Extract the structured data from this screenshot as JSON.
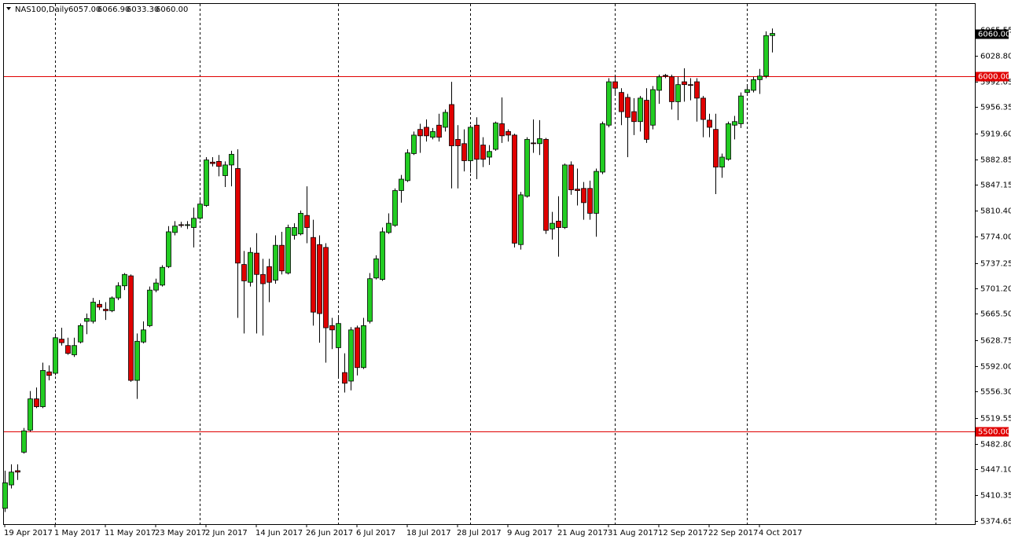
{
  "chart_data": {
    "type": "candlestick",
    "title": "NAS100,Daily",
    "header_ohlc": [
      "6057.00",
      "6066.90",
      "6033.30",
      "6060.00"
    ],
    "categories": [
      "19 Apr 2017",
      null,
      null,
      null,
      null,
      null,
      null,
      null,
      "1 May 2017",
      null,
      null,
      null,
      null,
      null,
      null,
      null,
      "11 May 2017",
      null,
      null,
      null,
      null,
      null,
      null,
      null,
      "23 May 2017",
      null,
      null,
      null,
      null,
      null,
      null,
      null,
      "2 Jun 2017",
      null,
      null,
      null,
      null,
      null,
      null,
      null,
      "14 Jun 2017",
      null,
      null,
      null,
      null,
      null,
      null,
      null,
      "26 Jun 2017",
      null,
      null,
      null,
      null,
      null,
      null,
      null,
      "6 Jul 2017",
      null,
      null,
      null,
      null,
      null,
      null,
      null,
      "18 Jul 2017",
      null,
      null,
      null,
      null,
      null,
      null,
      null,
      "28 Jul 2017",
      null,
      null,
      null,
      null,
      null,
      null,
      null,
      "9 Aug 2017",
      null,
      null,
      null,
      null,
      null,
      null,
      null,
      "21 Aug 2017",
      null,
      null,
      null,
      null,
      null,
      null,
      null,
      "31 Aug 2017",
      null,
      null,
      null,
      null,
      null,
      null,
      null,
      "12 Sep 2017",
      null,
      null,
      null,
      null,
      null,
      null,
      null,
      "22 Sep 2017",
      null,
      null,
      null,
      null,
      null,
      null,
      null,
      "4 Oct 2017",
      null,
      null
    ],
    "open": [
      5392,
      5425,
      5445,
      5471,
      5502,
      5546,
      5535,
      5584,
      5582,
      5630,
      5621,
      5608,
      5626,
      5655,
      5655,
      5679,
      5672,
      5670,
      5688,
      5705,
      5719,
      5572,
      5626,
      5649,
      5699,
      5706,
      5732,
      5780,
      5791,
      5790,
      5787,
      5800,
      5818,
      5879,
      5880,
      5860,
      5875,
      5870,
      5735,
      5710,
      5751,
      5721,
      5732,
      5713,
      5762,
      5723,
      5776,
      5778,
      5804,
      5773,
      5763,
      5759,
      5649,
      5618,
      5583,
      5571,
      5646,
      5590,
      5655,
      5716,
      5714,
      5780,
      5790,
      5839,
      5853,
      5891,
      5925,
      5928,
      5914,
      5931,
      5928,
      5960,
      5911,
      5905,
      5881,
      5931,
      5903,
      5886,
      5897,
      5933,
      5922,
      5917,
      5763,
      5831,
      5906,
      5905,
      5911,
      5785,
      5796,
      5787,
      5875,
      5841,
      5842,
      5842,
      5807,
      5865,
      5931,
      5992,
      5977,
      5970,
      5950,
      5936,
      5966,
      5931,
      5980,
      6001,
      5999,
      5964,
      5992,
      5988,
      5992,
      5969,
      5938,
      5925,
      5872,
      5883,
      5931,
      5933,
      5977,
      5980,
      5995,
      6000,
      6057
    ],
    "high": [
      5445,
      5454,
      5454,
      5505,
      5557,
      5562,
      5597,
      5593,
      5638,
      5646,
      5632,
      5632,
      5652,
      5666,
      5688,
      5685,
      5682,
      5690,
      5710,
      5723,
      5721,
      5638,
      5655,
      5704,
      5715,
      5734,
      5789,
      5796,
      5795,
      5796,
      5815,
      5826,
      5886,
      5886,
      5889,
      5880,
      5895,
      5897,
      5754,
      5759,
      5779,
      5743,
      5743,
      5776,
      5781,
      5791,
      5793,
      5811,
      5845,
      5798,
      5776,
      5765,
      5660,
      5663,
      5610,
      5647,
      5649,
      5660,
      5723,
      5748,
      5787,
      5807,
      5842,
      5861,
      5897,
      5922,
      5933,
      5939,
      5927,
      5947,
      5953,
      5992,
      5931,
      5925,
      5931,
      5942,
      5914,
      5903,
      5936,
      5970,
      5925,
      5919,
      5837,
      5914,
      5939,
      5938,
      5913,
      5809,
      5831,
      5877,
      5880,
      5870,
      5851,
      5853,
      5870,
      5936,
      5997,
      6001,
      5983,
      5975,
      5969,
      5972,
      5983,
      5986,
      6002,
      6003,
      6002,
      5999,
      6011,
      5997,
      5997,
      5972,
      5947,
      5947,
      5891,
      5936,
      5944,
      5977,
      5986,
      5999,
      6010,
      6063,
      6066.9
    ],
    "low": [
      5387,
      5420,
      5432,
      5469,
      5500,
      5533,
      5533,
      5572,
      5579,
      5621,
      5608,
      5605,
      5624,
      5637,
      5652,
      5671,
      5657,
      5668,
      5685,
      5699,
      5570,
      5546,
      5624,
      5647,
      5696,
      5704,
      5730,
      5776,
      5787,
      5785,
      5759,
      5798,
      5816,
      5873,
      5859,
      5844,
      5845,
      5660,
      5638,
      5704,
      5638,
      5635,
      5682,
      5708,
      5721,
      5721,
      5770,
      5776,
      5765,
      5649,
      5625,
      5597,
      5616,
      5577,
      5555,
      5558,
      5579,
      5588,
      5652,
      5714,
      5712,
      5778,
      5788,
      5822,
      5851,
      5889,
      5892,
      5908,
      5911,
      5908,
      5922,
      5842,
      5842,
      5866,
      5864,
      5855,
      5872,
      5875,
      5895,
      5906,
      5908,
      5759,
      5756,
      5829,
      5892,
      5889,
      5778,
      5770,
      5746,
      5785,
      5833,
      5818,
      5798,
      5798,
      5774,
      5862,
      5928,
      5975,
      5931,
      5886,
      5917,
      5922,
      5906,
      5925,
      5961,
      5997,
      5953,
      5938,
      5964,
      5966,
      5936,
      5914,
      5914,
      5834,
      5857,
      5881,
      5911,
      5927,
      5975,
      5977,
      5975,
      5997,
      6033.3
    ],
    "close": [
      5428,
      5443,
      5443,
      5501,
      5546,
      5535,
      5586,
      5579,
      5632,
      5625,
      5610,
      5621,
      5649,
      5659,
      5682,
      5675,
      5670,
      5688,
      5705,
      5721,
      5572,
      5627,
      5643,
      5699,
      5709,
      5731,
      5781,
      5789,
      5790,
      5791,
      5800,
      5820,
      5882,
      5877,
      5873,
      5875,
      5890,
      5737,
      5712,
      5752,
      5721,
      5708,
      5710,
      5762,
      5726,
      5787,
      5787,
      5807,
      5787,
      5668,
      5666,
      5646,
      5643,
      5652,
      5568,
      5643,
      5590,
      5649,
      5715,
      5743,
      5781,
      5793,
      5839,
      5855,
      5892,
      5917,
      5916,
      5916,
      5922,
      5914,
      5949,
      5902,
      5902,
      5881,
      5928,
      5883,
      5883,
      5894,
      5934,
      5916,
      5917,
      5765,
      5833,
      5911,
      5905,
      5912,
      5783,
      5793,
      5787,
      5875,
      5840,
      5839,
      5822,
      5807,
      5866,
      5933,
      5992,
      5983,
      5950,
      5942,
      5936,
      5969,
      5911,
      5981,
      5999,
      6000,
      5964,
      5988,
      5988,
      5987,
      5969,
      5939,
      5928,
      5872,
      5886,
      5933,
      5936,
      5972,
      5981,
      5995,
      6000,
      6057,
      6060
    ],
    "up_color": "#22cc22",
    "down_color": "#e00000",
    "ylim": [
      5369.8,
      6101.5
    ],
    "yticks": [
      {
        "value": 6065.55,
        "label": "6065.55"
      },
      {
        "value": 6028.8,
        "label": "6028.80"
      },
      {
        "value": 5992.05,
        "label": "5992.05"
      },
      {
        "value": 5956.35,
        "label": "5956.35"
      },
      {
        "value": 5919.6,
        "label": "5919.60"
      },
      {
        "value": 5882.85,
        "label": "5882.85"
      },
      {
        "value": 5847.15,
        "label": "5847.15"
      },
      {
        "value": 5810.4,
        "label": "5810.40"
      },
      {
        "value": 5774,
        "label": "5774.00"
      },
      {
        "value": 5737.25,
        "label": "5737.25"
      },
      {
        "value": 5701.2,
        "label": "5701.20"
      },
      {
        "value": 5665.5,
        "label": "5665.50"
      },
      {
        "value": 5628.75,
        "label": "5628.75"
      },
      {
        "value": 5592,
        "label": "5592.00"
      },
      {
        "value": 5556.3,
        "label": "5556.30"
      },
      {
        "value": 5519.55,
        "label": "5519.55"
      },
      {
        "value": 5482.8,
        "label": "5482.80"
      },
      {
        "value": 5447.1,
        "label": "5447.10"
      },
      {
        "value": 5410.35,
        "label": "5410.35"
      },
      {
        "value": 5374.65,
        "label": "5374.65"
      }
    ],
    "hlines": [
      {
        "value": 6000,
        "label": "6000.00",
        "color": "#e00000"
      },
      {
        "value": 5500,
        "label": "5500.00",
        "color": "#e00000"
      }
    ],
    "last_price": {
      "value": 6060,
      "label": "6060.00"
    },
    "period_separators": [
      8,
      31,
      53,
      74,
      97,
      118,
      148
    ]
  }
}
